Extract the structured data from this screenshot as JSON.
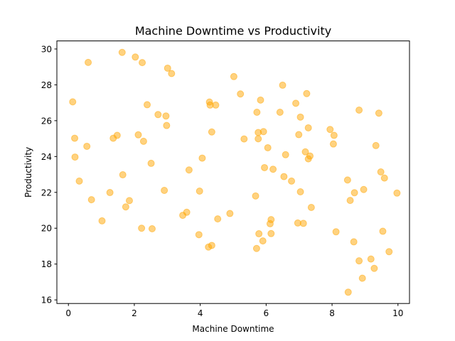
{
  "chart_data": {
    "type": "scatter",
    "title": "Machine Downtime vs Productivity",
    "xlabel": "Machine Downtime",
    "ylabel": "Productivity",
    "xlim": [
      -0.35,
      10.35
    ],
    "ylim": [
      15.8,
      30.45
    ],
    "xticks": [
      0,
      2,
      4,
      6,
      8,
      10
    ],
    "yticks": [
      16,
      18,
      20,
      22,
      24,
      26,
      28,
      30
    ],
    "grid": false,
    "marker_color": "#FFA500",
    "marker_alpha": 0.5,
    "points": [
      [
        0.13,
        27.05
      ],
      [
        0.19,
        25.02
      ],
      [
        0.2,
        23.97
      ],
      [
        0.33,
        22.63
      ],
      [
        0.56,
        24.57
      ],
      [
        0.6,
        29.25
      ],
      [
        0.7,
        21.59
      ],
      [
        1.02,
        20.41
      ],
      [
        1.26,
        21.99
      ],
      [
        1.36,
        25.02
      ],
      [
        1.48,
        25.18
      ],
      [
        1.63,
        29.81
      ],
      [
        1.65,
        22.98
      ],
      [
        1.74,
        21.19
      ],
      [
        1.85,
        21.54
      ],
      [
        2.03,
        29.55
      ],
      [
        2.12,
        25.21
      ],
      [
        2.22,
        20.0
      ],
      [
        2.24,
        29.24
      ],
      [
        2.28,
        24.85
      ],
      [
        2.39,
        26.89
      ],
      [
        2.51,
        23.62
      ],
      [
        2.54,
        19.97
      ],
      [
        2.72,
        26.34
      ],
      [
        2.91,
        22.11
      ],
      [
        2.96,
        26.26
      ],
      [
        2.98,
        25.73
      ],
      [
        3.01,
        28.93
      ],
      [
        3.13,
        28.63
      ],
      [
        3.47,
        20.72
      ],
      [
        3.59,
        20.89
      ],
      [
        3.66,
        23.25
      ],
      [
        3.96,
        19.64
      ],
      [
        3.98,
        22.07
      ],
      [
        4.06,
        23.91
      ],
      [
        4.25,
        18.95
      ],
      [
        4.28,
        27.04
      ],
      [
        4.3,
        26.87
      ],
      [
        4.35,
        19.04
      ],
      [
        4.35,
        25.37
      ],
      [
        4.47,
        26.87
      ],
      [
        4.53,
        20.52
      ],
      [
        4.9,
        20.82
      ],
      [
        5.02,
        28.46
      ],
      [
        5.22,
        27.49
      ],
      [
        5.33,
        24.98
      ],
      [
        5.68,
        21.8
      ],
      [
        5.71,
        18.87
      ],
      [
        5.72,
        26.47
      ],
      [
        5.76,
        25.34
      ],
      [
        5.76,
        24.99
      ],
      [
        5.78,
        19.69
      ],
      [
        5.83,
        27.15
      ],
      [
        5.9,
        19.29
      ],
      [
        5.92,
        25.39
      ],
      [
        5.95,
        23.38
      ],
      [
        6.05,
        24.49
      ],
      [
        6.12,
        20.25
      ],
      [
        6.15,
        19.7
      ],
      [
        6.15,
        20.48
      ],
      [
        6.21,
        23.29
      ],
      [
        6.42,
        26.47
      ],
      [
        6.5,
        27.98
      ],
      [
        6.54,
        22.88
      ],
      [
        6.59,
        24.1
      ],
      [
        6.77,
        22.63
      ],
      [
        6.9,
        26.97
      ],
      [
        6.96,
        20.29
      ],
      [
        6.99,
        25.22
      ],
      [
        7.04,
        26.2
      ],
      [
        7.04,
        22.03
      ],
      [
        7.13,
        20.27
      ],
      [
        7.19,
        24.26
      ],
      [
        7.23,
        27.51
      ],
      [
        7.28,
        25.6
      ],
      [
        7.28,
        23.87
      ],
      [
        7.33,
        24.03
      ],
      [
        7.37,
        21.16
      ],
      [
        7.94,
        25.51
      ],
      [
        8.04,
        24.7
      ],
      [
        8.06,
        25.18
      ],
      [
        8.12,
        19.8
      ],
      [
        8.82,
        26.59
      ],
      [
        8.47,
        22.69
      ],
      [
        8.49,
        16.43
      ],
      [
        8.55,
        21.55
      ],
      [
        8.66,
        19.24
      ],
      [
        8.68,
        21.98
      ],
      [
        8.82,
        18.18
      ],
      [
        8.92,
        17.21
      ],
      [
        8.96,
        22.16
      ],
      [
        9.18,
        18.28
      ],
      [
        9.28,
        17.76
      ],
      [
        9.33,
        24.61
      ],
      [
        9.42,
        26.42
      ],
      [
        9.48,
        23.14
      ],
      [
        9.54,
        19.83
      ],
      [
        9.59,
        22.8
      ],
      [
        9.73,
        18.69
      ],
      [
        9.97,
        21.96
      ]
    ]
  }
}
